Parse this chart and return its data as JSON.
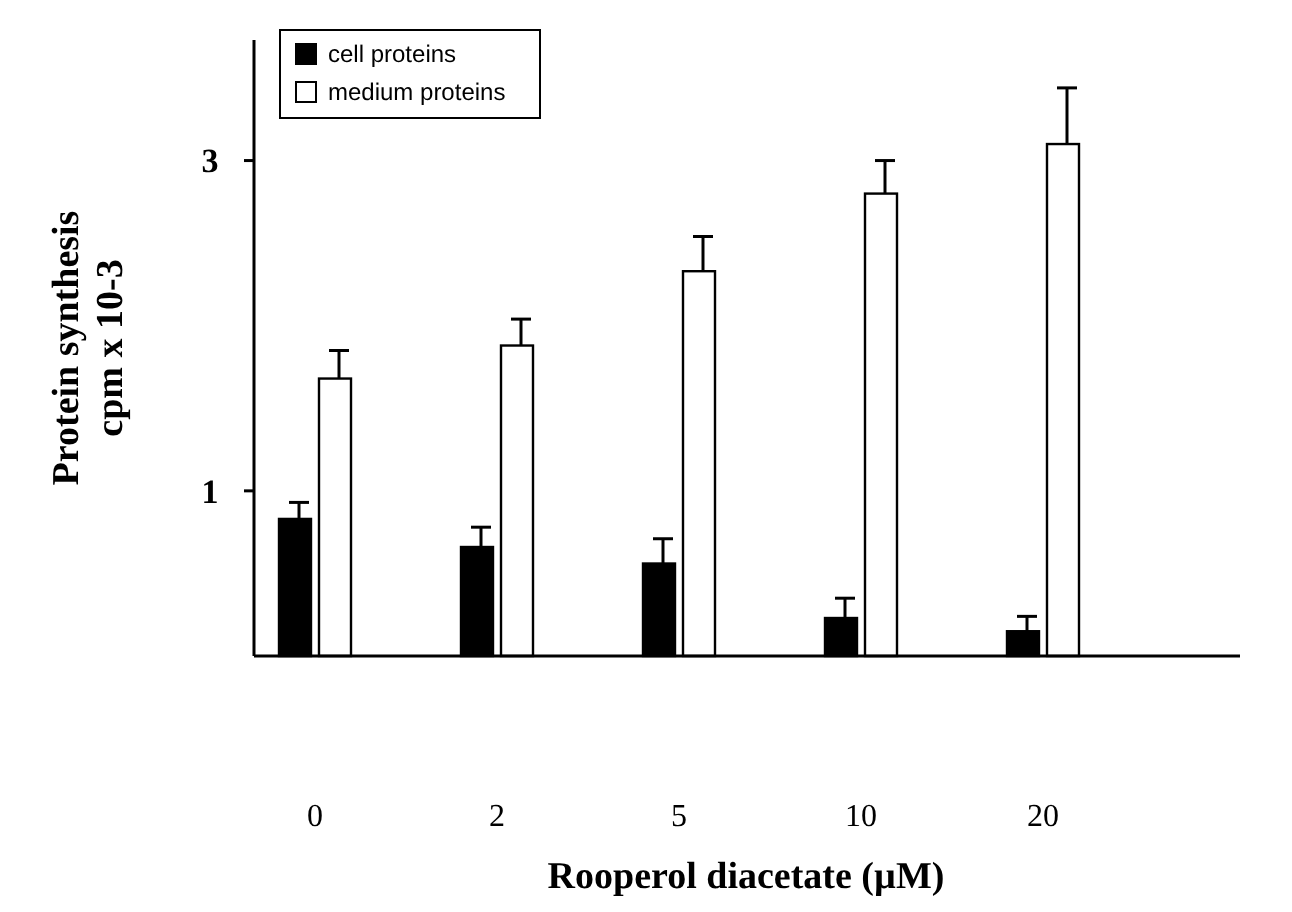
{
  "chart_data": {
    "type": "bar",
    "xlabel": "Rooperol diacetate (µM)",
    "ylabel": "Protein synthesis\ncpm x 10-3",
    "categories": [
      "0",
      "2",
      "5",
      "10",
      "20"
    ],
    "series": [
      {
        "name": "cell proteins",
        "color": "#000000",
        "values": [
          0.83,
          0.66,
          0.56,
          0.23,
          0.15
        ],
        "errors": [
          [
            0.83,
            0.93
          ],
          [
            0.66,
            0.78
          ],
          [
            0.56,
            0.71
          ],
          [
            0.23,
            0.35
          ],
          [
            0.15,
            0.24
          ]
        ]
      },
      {
        "name": "medium proteins",
        "color": "#ffffff",
        "values": [
          1.68,
          1.88,
          2.33,
          2.8,
          3.1
        ],
        "errors": [
          [
            1.68,
            1.85
          ],
          [
            1.88,
            2.04
          ],
          [
            2.33,
            2.54
          ],
          [
            2.8,
            3.0
          ],
          [
            3.1,
            3.44
          ]
        ]
      }
    ],
    "ylim": [
      0,
      3.73
    ],
    "yticks": [
      1,
      3
    ],
    "grid": false,
    "legend": "top left"
  }
}
